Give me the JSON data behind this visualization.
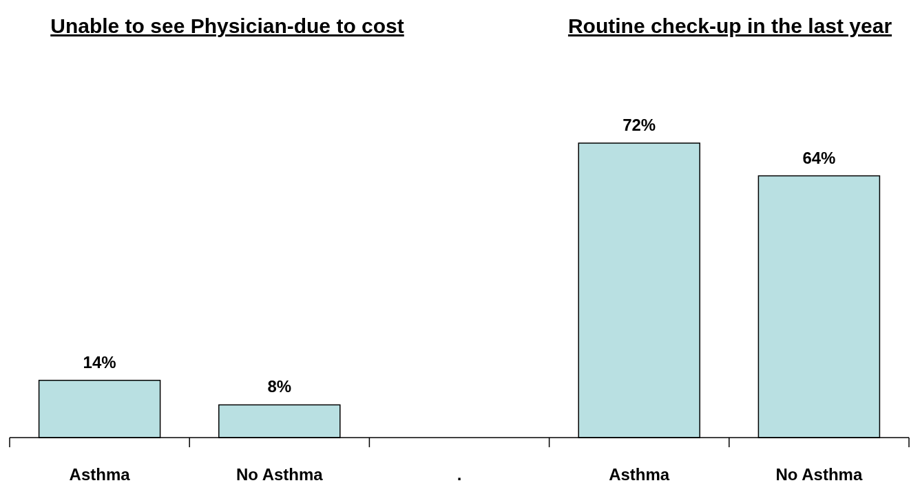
{
  "chart_data": {
    "type": "bar",
    "categories": [
      "Asthma",
      "No Asthma",
      ".",
      "Asthma",
      "No Asthma"
    ],
    "values": [
      14,
      8,
      null,
      72,
      64
    ],
    "color": "#b9e0e2",
    "data_labels": true,
    "value_labels": [
      "14%",
      "8%",
      null,
      "72%",
      "64%"
    ],
    "annotations": [
      "Unable to see Physician-due to cost",
      "Routine check-up in the last year"
    ]
  }
}
